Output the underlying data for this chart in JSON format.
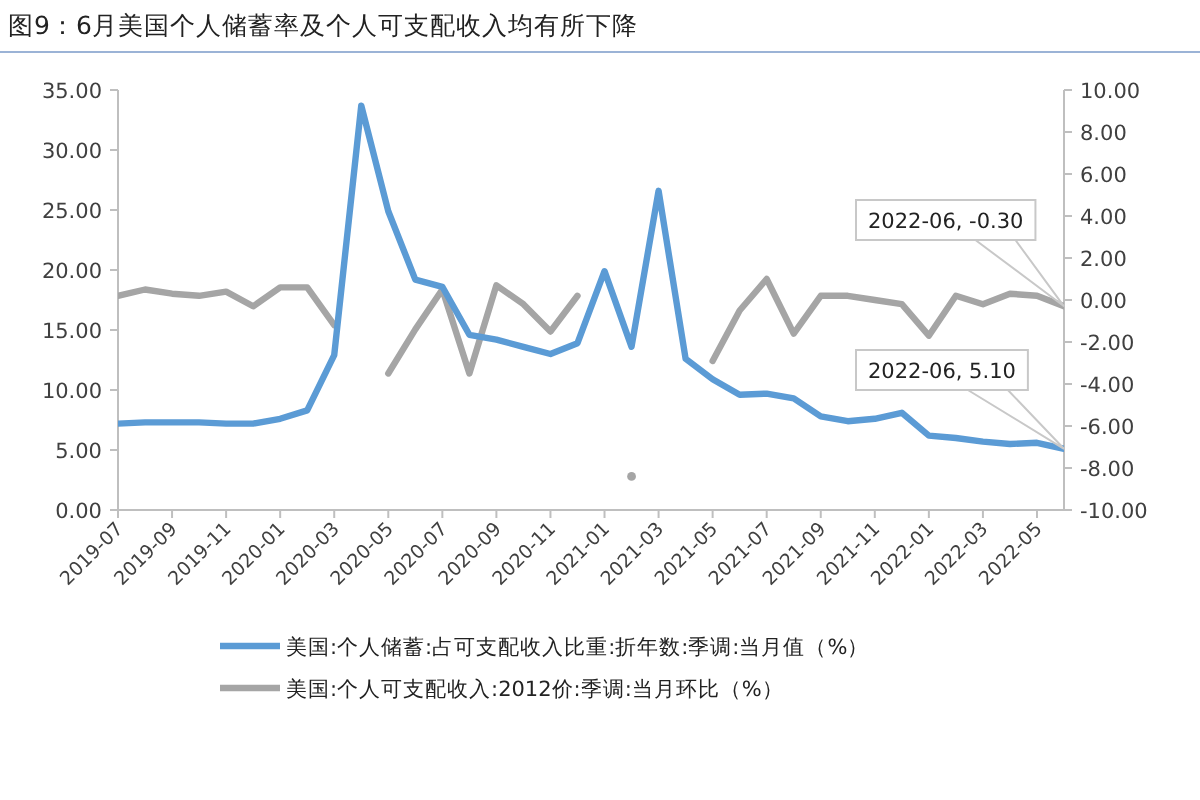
{
  "chart_data": {
    "type": "line",
    "title": "图9：6月美国个人储蓄率及个人可支配收入均有所下降",
    "x": [
      "2019-07",
      "2019-08",
      "2019-09",
      "2019-10",
      "2019-11",
      "2019-12",
      "2020-01",
      "2020-02",
      "2020-03",
      "2020-04",
      "2020-05",
      "2020-06",
      "2020-07",
      "2020-08",
      "2020-09",
      "2020-10",
      "2020-11",
      "2020-12",
      "2021-01",
      "2021-02",
      "2021-03",
      "2021-04",
      "2021-05",
      "2021-06",
      "2021-07",
      "2021-08",
      "2021-09",
      "2021-10",
      "2021-11",
      "2021-12",
      "2022-01",
      "2022-02",
      "2022-03",
      "2022-04",
      "2022-05",
      "2022-06"
    ],
    "series": [
      {
        "name": "美国:个人储蓄:占可支配收入比重:折年数:季调:当月值（%）",
        "color": "#5b9bd5",
        "values": [
          7.2,
          7.3,
          7.3,
          7.3,
          7.2,
          7.2,
          7.6,
          8.3,
          12.9,
          33.7,
          24.9,
          19.2,
          18.6,
          14.6,
          14.2,
          13.6,
          13.0,
          13.9,
          19.9,
          13.6,
          26.6,
          12.6,
          10.9,
          9.6,
          9.7,
          9.3,
          7.8,
          7.4,
          7.6,
          8.1,
          6.2,
          6.0,
          5.7,
          5.5,
          5.6,
          5.1
        ]
      },
      {
        "name": "美国:个人可支配收入:2012价:季调:当月环比（%）",
        "color": "#a5a5a5",
        "axis": "y2",
        "values": [
          0.2,
          0.5,
          0.3,
          0.2,
          0.4,
          -0.3,
          0.6,
          0.6,
          -1.2,
          null,
          -3.5,
          -1.4,
          0.5,
          -3.5,
          0.7,
          -0.2,
          -1.5,
          0.2,
          null,
          -8.4,
          null,
          null,
          -2.9,
          -0.5,
          1.0,
          -1.6,
          0.2,
          0.2,
          0.0,
          -0.2,
          -1.7,
          0.2,
          -0.2,
          0.3,
          0.2,
          -0.3
        ]
      }
    ],
    "xlim": [
      "2019-07",
      "2022-06"
    ],
    "xticks": [
      "2019-07",
      "2019-09",
      "2019-11",
      "2020-01",
      "2020-03",
      "2020-05",
      "2020-07",
      "2020-09",
      "2020-11",
      "2021-01",
      "2021-03",
      "2021-05",
      "2021-07",
      "2021-09",
      "2021-11",
      "2022-01",
      "2022-03",
      "2022-05"
    ],
    "ylim": [
      0,
      35
    ],
    "yticks": [
      {
        "value": 0,
        "label": "0.00"
      },
      {
        "value": 5,
        "label": "5.00"
      },
      {
        "value": 10,
        "label": "10.00"
      },
      {
        "value": 15,
        "label": "15.00"
      },
      {
        "value": 20,
        "label": "20.00"
      },
      {
        "value": 25,
        "label": "25.00"
      },
      {
        "value": 30,
        "label": "30.00"
      },
      {
        "value": 35,
        "label": "35.00"
      }
    ],
    "y2lim": [
      -10,
      10
    ],
    "y2ticks": [
      {
        "value": -10,
        "label": "-10.00"
      },
      {
        "value": -8,
        "label": "-8.00"
      },
      {
        "value": -6,
        "label": "-6.00"
      },
      {
        "value": -4,
        "label": "-4.00"
      },
      {
        "value": -2,
        "label": "-2.00"
      },
      {
        "value": 0,
        "label": "0.00"
      },
      {
        "value": 2,
        "label": "2.00"
      },
      {
        "value": 4,
        "label": "4.00"
      },
      {
        "value": 6,
        "label": "6.00"
      },
      {
        "value": 8,
        "label": "8.00"
      },
      {
        "value": 10,
        "label": "10.00"
      }
    ],
    "annotations": [
      "2022-06, 5.10",
      "2022-06, -0.30"
    ],
    "legend": "bottom",
    "grid": false,
    "marker": "none",
    "line_style": "solid"
  }
}
